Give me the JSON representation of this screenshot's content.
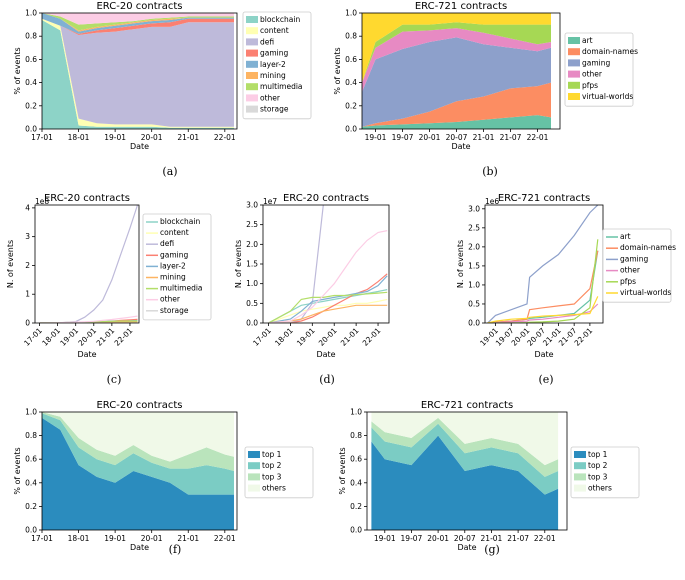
{
  "chart_data": [
    {
      "id": "a",
      "type": "area",
      "caption": "(a)",
      "title": "ERC-20 contracts",
      "xlabel": "Date",
      "ylabel": "% of events",
      "ylim": [
        0,
        1.0
      ],
      "yticks": [
        "0.0",
        "0.2",
        "0.4",
        "0.6",
        "0.8",
        "1.0"
      ],
      "xticks": [
        "17-01",
        "18-01",
        "19-01",
        "20-01",
        "21-01",
        "22-01"
      ],
      "legend": [
        "blockchain",
        "content",
        "defi",
        "gaming",
        "layer-2",
        "mining",
        "multimedia",
        "other",
        "storage"
      ],
      "x": [
        "17-01",
        "17-07",
        "18-01",
        "18-07",
        "19-01",
        "19-07",
        "20-01",
        "20-07",
        "21-01",
        "21-07",
        "22-01",
        "22-04"
      ],
      "series": [
        {
          "name": "blockchain",
          "values": [
            0.94,
            0.85,
            0.03,
            0.02,
            0.02,
            0.02,
            0.02,
            0.01,
            0.01,
            0.01,
            0.01,
            0.01
          ]
        },
        {
          "name": "content",
          "values": [
            0.01,
            0.04,
            0.06,
            0.03,
            0.02,
            0.02,
            0.02,
            0.01,
            0.01,
            0.01,
            0.01,
            0.01
          ]
        },
        {
          "name": "defi",
          "values": [
            0.0,
            0.0,
            0.72,
            0.78,
            0.8,
            0.82,
            0.84,
            0.86,
            0.9,
            0.9,
            0.9,
            0.9
          ]
        },
        {
          "name": "gaming",
          "values": [
            0.0,
            0.0,
            0.01,
            0.02,
            0.03,
            0.03,
            0.03,
            0.04,
            0.03,
            0.03,
            0.03,
            0.03
          ]
        },
        {
          "name": "layer-2",
          "values": [
            0.05,
            0.06,
            0.02,
            0.02,
            0.02,
            0.02,
            0.02,
            0.02,
            0.01,
            0.01,
            0.01,
            0.01
          ]
        },
        {
          "name": "mining",
          "values": [
            0.0,
            0.0,
            0.01,
            0.01,
            0.01,
            0.01,
            0.01,
            0.01,
            0.0,
            0.0,
            0.0,
            0.0
          ]
        },
        {
          "name": "multimedia",
          "values": [
            0.0,
            0.02,
            0.05,
            0.03,
            0.02,
            0.01,
            0.01,
            0.01,
            0.01,
            0.01,
            0.01,
            0.01
          ]
        },
        {
          "name": "other",
          "values": [
            0.0,
            0.03,
            0.1,
            0.09,
            0.08,
            0.07,
            0.05,
            0.04,
            0.03,
            0.03,
            0.03,
            0.03
          ]
        },
        {
          "name": "storage",
          "values": [
            0.0,
            0.0,
            0.0,
            0.0,
            0.0,
            0.0,
            0.0,
            0.0,
            0.0,
            0.0,
            0.0,
            0.0
          ]
        }
      ]
    },
    {
      "id": "b",
      "type": "area",
      "caption": "(b)",
      "title": "ERC-721 contracts",
      "xlabel": "Date",
      "ylabel": "% of events",
      "ylim": [
        0,
        1.0
      ],
      "yticks": [
        "0.0",
        "0.2",
        "0.4",
        "0.6",
        "0.8",
        "1.0"
      ],
      "xticks": [
        "19-01",
        "19-07",
        "20-01",
        "20-07",
        "21-01",
        "21-07",
        "22-01"
      ],
      "legend": [
        "art",
        "domain-names",
        "gaming",
        "other",
        "pfps",
        "virtual-worlds"
      ],
      "x": [
        "18-10",
        "19-01",
        "19-07",
        "20-01",
        "20-07",
        "21-01",
        "21-07",
        "22-01",
        "22-04"
      ],
      "series": [
        {
          "name": "art",
          "values": [
            0.02,
            0.03,
            0.04,
            0.05,
            0.06,
            0.08,
            0.1,
            0.12,
            0.1
          ]
        },
        {
          "name": "domain-names",
          "values": [
            0.0,
            0.02,
            0.05,
            0.1,
            0.18,
            0.2,
            0.25,
            0.25,
            0.3
          ]
        },
        {
          "name": "gaming",
          "values": [
            0.3,
            0.55,
            0.6,
            0.6,
            0.55,
            0.45,
            0.35,
            0.3,
            0.3
          ]
        },
        {
          "name": "other",
          "values": [
            0.08,
            0.1,
            0.15,
            0.1,
            0.08,
            0.1,
            0.08,
            0.06,
            0.05
          ]
        },
        {
          "name": "pfps",
          "values": [
            0.0,
            0.05,
            0.06,
            0.05,
            0.05,
            0.07,
            0.12,
            0.17,
            0.15
          ]
        },
        {
          "name": "virtual-worlds",
          "values": [
            0.6,
            0.25,
            0.1,
            0.1,
            0.08,
            0.1,
            0.1,
            0.1,
            0.1
          ]
        }
      ]
    },
    {
      "id": "c",
      "type": "line",
      "caption": "(c)",
      "title": "ERC-20 contracts",
      "xlabel": "Date",
      "ylabel": "N. of events",
      "ylim": [
        0,
        4.1
      ],
      "scale": "1e8",
      "yticks": [
        "0",
        "1",
        "2",
        "3",
        "4"
      ],
      "xticks": [
        "17-01",
        "18-01",
        "19-01",
        "20-01",
        "21-01",
        "22-01"
      ],
      "legend": [
        "blockchain",
        "content",
        "defi",
        "gaming",
        "layer-2",
        "mining",
        "multimedia",
        "other",
        "storage"
      ],
      "x": [
        "17-01",
        "18-01",
        "19-01",
        "19-07",
        "20-01",
        "20-07",
        "21-01",
        "21-07",
        "22-01",
        "22-06"
      ],
      "series": [
        {
          "name": "blockchain",
          "values": [
            0.0,
            0.01,
            0.02,
            0.03,
            0.04,
            0.05,
            0.07,
            0.08,
            0.09,
            0.1
          ]
        },
        {
          "name": "content",
          "values": [
            0.0,
            0.01,
            0.01,
            0.01,
            0.02,
            0.02,
            0.02,
            0.03,
            0.03,
            0.03
          ]
        },
        {
          "name": "defi",
          "values": [
            0.0,
            0.0,
            0.05,
            0.2,
            0.45,
            0.8,
            1.5,
            2.4,
            3.3,
            4.1
          ]
        },
        {
          "name": "gaming",
          "values": [
            0.0,
            0.0,
            0.01,
            0.02,
            0.03,
            0.04,
            0.06,
            0.09,
            0.11,
            0.13
          ]
        },
        {
          "name": "layer-2",
          "values": [
            0.0,
            0.01,
            0.02,
            0.02,
            0.03,
            0.04,
            0.05,
            0.06,
            0.07,
            0.08
          ]
        },
        {
          "name": "mining",
          "values": [
            0.0,
            0.0,
            0.01,
            0.01,
            0.02,
            0.02,
            0.03,
            0.03,
            0.04,
            0.04
          ]
        },
        {
          "name": "multimedia",
          "values": [
            0.0,
            0.01,
            0.02,
            0.03,
            0.04,
            0.05,
            0.06,
            0.07,
            0.07,
            0.07
          ]
        },
        {
          "name": "other",
          "values": [
            0.0,
            0.01,
            0.03,
            0.04,
            0.06,
            0.09,
            0.12,
            0.16,
            0.2,
            0.24
          ]
        },
        {
          "name": "storage",
          "values": [
            0.0,
            0.0,
            0.0,
            0.0,
            0.0,
            0.0,
            0.0,
            0.0,
            0.0,
            0.0
          ]
        }
      ]
    },
    {
      "id": "d",
      "type": "line",
      "caption": "(d)",
      "title": "ERC-20 contracts",
      "xlabel": "Date",
      "ylabel": "N. of events",
      "ylim": [
        0,
        3.0
      ],
      "scale": "1e7",
      "yticks": [
        "0.0",
        "0.5",
        "1.0",
        "1.5",
        "2.0",
        "2.5",
        "3.0"
      ],
      "xticks": [
        "17-01",
        "18-01",
        "19-01",
        "20-01",
        "21-01",
        "22-01"
      ],
      "x": [
        "17-01",
        "18-01",
        "18-07",
        "19-01",
        "19-07",
        "20-01",
        "20-07",
        "21-01",
        "21-07",
        "22-01",
        "22-06"
      ],
      "series": [
        {
          "name": "blockchain",
          "values": [
            0.0,
            0.3,
            0.45,
            0.5,
            0.55,
            0.6,
            0.65,
            0.7,
            0.75,
            0.8,
            0.85
          ]
        },
        {
          "name": "content",
          "values": [
            0.0,
            0.2,
            0.3,
            0.35,
            0.4,
            0.45,
            0.45,
            0.5,
            0.5,
            0.55,
            0.6
          ]
        },
        {
          "name": "defi",
          "values": [
            0.0,
            0.0,
            0.1,
            0.5,
            3.0,
            null,
            null,
            null,
            null,
            null,
            null
          ]
        },
        {
          "name": "gaming",
          "values": [
            0.0,
            0.0,
            0.05,
            0.15,
            0.3,
            0.45,
            0.6,
            0.75,
            0.85,
            1.05,
            1.25
          ]
        },
        {
          "name": "layer-2",
          "values": [
            0.0,
            0.1,
            0.3,
            0.55,
            0.6,
            0.65,
            0.7,
            0.75,
            0.8,
            0.95,
            1.2
          ]
        },
        {
          "name": "mining",
          "values": [
            0.0,
            0.05,
            0.1,
            0.2,
            0.3,
            0.35,
            0.4,
            0.45,
            0.45,
            0.45,
            0.45
          ]
        },
        {
          "name": "multimedia",
          "values": [
            0.0,
            0.3,
            0.6,
            0.65,
            0.65,
            0.7,
            0.7,
            0.72,
            0.74,
            0.76,
            0.78
          ]
        },
        {
          "name": "other",
          "values": [
            0.0,
            0.05,
            0.2,
            0.4,
            0.7,
            1.0,
            1.4,
            1.8,
            2.1,
            2.3,
            2.35
          ]
        },
        {
          "name": "storage",
          "values": [
            0.0,
            0.0,
            0.0,
            0.0,
            0.0,
            0.0,
            0.0,
            0.0,
            0.0,
            0.0,
            0.0
          ]
        }
      ]
    },
    {
      "id": "e",
      "type": "line",
      "caption": "(e)",
      "title": "ERC-721 contracts",
      "xlabel": "Date",
      "ylabel": "N. of events",
      "ylim": [
        0,
        3.1
      ],
      "scale": "1e6",
      "yticks": [
        "0.0",
        "0.5",
        "1.0",
        "1.5",
        "2.0",
        "2.5",
        "3.0"
      ],
      "xticks": [
        "19-01",
        "19-07",
        "20-01",
        "20-07",
        "21-01",
        "21-07",
        "22-01"
      ],
      "legend": [
        "art",
        "domain-names",
        "gaming",
        "other",
        "pfps",
        "virtual-worlds"
      ],
      "x": [
        "18-10",
        "19-01",
        "19-07",
        "20-01",
        "20-02",
        "20-07",
        "21-01",
        "21-07",
        "22-01",
        "22-04"
      ],
      "series": [
        {
          "name": "art",
          "values": [
            0.0,
            0.02,
            0.05,
            0.1,
            0.12,
            0.15,
            0.2,
            0.25,
            0.6,
            1.9
          ]
        },
        {
          "name": "domain-names",
          "values": [
            0.0,
            0.02,
            0.05,
            0.1,
            0.35,
            0.4,
            0.45,
            0.5,
            0.9,
            1.9
          ]
        },
        {
          "name": "gaming",
          "values": [
            0.0,
            0.2,
            0.35,
            0.5,
            1.2,
            1.5,
            1.8,
            2.3,
            2.9,
            3.1
          ]
        },
        {
          "name": "other",
          "values": [
            0.0,
            0.01,
            0.03,
            0.05,
            0.08,
            0.1,
            0.15,
            0.2,
            0.3,
            0.5
          ]
        },
        {
          "name": "pfps",
          "values": [
            0.0,
            0.0,
            0.0,
            0.01,
            0.02,
            0.03,
            0.05,
            0.1,
            0.4,
            2.2
          ]
        },
        {
          "name": "virtual-worlds",
          "values": [
            0.0,
            0.05,
            0.1,
            0.12,
            0.15,
            0.18,
            0.2,
            0.22,
            0.25,
            0.7
          ]
        }
      ]
    },
    {
      "id": "f",
      "type": "area",
      "caption": "(f)",
      "title": "ERC-20 contracts",
      "xlabel": "Date",
      "ylabel": "% of events",
      "ylim": [
        0,
        1.0
      ],
      "yticks": [
        "0.0",
        "0.2",
        "0.4",
        "0.6",
        "0.8",
        "1.0"
      ],
      "xticks": [
        "17-01",
        "18-01",
        "19-01",
        "20-01",
        "21-01",
        "22-01"
      ],
      "legend": [
        "top 1",
        "top 2",
        "top 3",
        "others"
      ],
      "x": [
        "17-01",
        "17-07",
        "18-01",
        "18-07",
        "19-01",
        "19-07",
        "20-01",
        "20-07",
        "21-01",
        "21-07",
        "22-01",
        "22-04"
      ],
      "series": [
        {
          "name": "top 1",
          "values": [
            0.95,
            0.85,
            0.55,
            0.45,
            0.4,
            0.5,
            0.45,
            0.4,
            0.3,
            0.3,
            0.3,
            0.3
          ]
        },
        {
          "name": "top 2",
          "values": [
            0.04,
            0.08,
            0.15,
            0.15,
            0.15,
            0.15,
            0.12,
            0.12,
            0.22,
            0.25,
            0.22,
            0.2
          ]
        },
        {
          "name": "top 3",
          "values": [
            0.01,
            0.03,
            0.08,
            0.08,
            0.08,
            0.07,
            0.06,
            0.06,
            0.12,
            0.15,
            0.12,
            0.12
          ]
        },
        {
          "name": "others",
          "values": [
            0.0,
            0.04,
            0.22,
            0.32,
            0.37,
            0.28,
            0.37,
            0.42,
            0.36,
            0.3,
            0.36,
            0.38
          ]
        }
      ]
    },
    {
      "id": "g",
      "type": "area",
      "caption": "(g)",
      "title": "ERC-721 contracts",
      "xlabel": "Date",
      "ylabel": "% of events",
      "ylim": [
        0,
        1.0
      ],
      "yticks": [
        "0.0",
        "0.2",
        "0.4",
        "0.6",
        "0.8",
        "1.0"
      ],
      "xticks": [
        "19-01",
        "19-07",
        "20-01",
        "20-07",
        "21-01",
        "21-07",
        "22-01"
      ],
      "legend": [
        "top 1",
        "top 2",
        "top 3",
        "others"
      ],
      "x": [
        "18-10",
        "19-01",
        "19-07",
        "20-01",
        "20-07",
        "21-01",
        "21-07",
        "22-01",
        "22-04"
      ],
      "series": [
        {
          "name": "top 1",
          "values": [
            0.75,
            0.6,
            0.55,
            0.8,
            0.5,
            0.55,
            0.5,
            0.3,
            0.35
          ]
        },
        {
          "name": "top 2",
          "values": [
            0.12,
            0.15,
            0.15,
            0.1,
            0.15,
            0.15,
            0.15,
            0.15,
            0.15
          ]
        },
        {
          "name": "top 3",
          "values": [
            0.05,
            0.08,
            0.08,
            0.05,
            0.08,
            0.08,
            0.08,
            0.1,
            0.1
          ]
        },
        {
          "name": "others",
          "values": [
            0.08,
            0.17,
            0.22,
            0.05,
            0.27,
            0.22,
            0.27,
            0.45,
            0.4
          ]
        }
      ]
    }
  ],
  "colors": {
    "set3_9": [
      "#8dd3c7",
      "#ffffb3",
      "#bebada",
      "#fb8072",
      "#80b1d3",
      "#fdb462",
      "#b3de69",
      "#fccde5",
      "#d9d9d9"
    ],
    "set2_6": [
      "#66c2a5",
      "#fc8d62",
      "#8da0cb",
      "#e78ac3",
      "#a6d854",
      "#ffd92f"
    ],
    "gnbu_4": [
      "#2b8cbe",
      "#7bccc4",
      "#bae4bc",
      "#f0f9e8"
    ]
  }
}
